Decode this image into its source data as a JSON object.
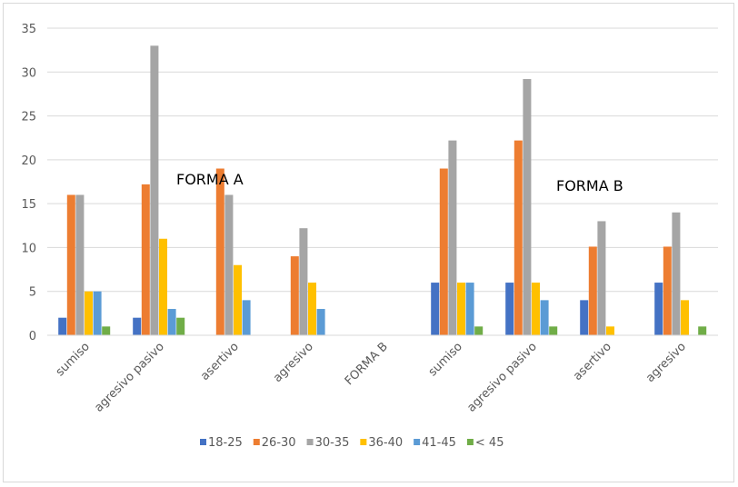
{
  "chart_data": {
    "type": "bar",
    "categories": [
      "sumiso",
      "agresivo pasivo",
      "asertivo",
      "agresivo",
      "FORMA B",
      "sumiso",
      "agresivo pasivo",
      "asertivo",
      "agresivo"
    ],
    "series": [
      {
        "name": "18-25",
        "color": "#4472c4",
        "values": [
          2,
          2,
          0,
          0,
          0,
          6,
          6,
          4,
          6
        ]
      },
      {
        "name": "26-30",
        "color": "#ed7d31",
        "values": [
          16,
          17.2,
          19,
          9,
          0,
          19,
          22.2,
          10.1,
          10.1
        ]
      },
      {
        "name": "30-35",
        "color": "#a5a5a5",
        "values": [
          16,
          33,
          16,
          12.2,
          0,
          22.2,
          29.2,
          13,
          14
        ]
      },
      {
        "name": "36-40",
        "color": "#ffc000",
        "values": [
          5,
          11,
          8,
          6,
          0,
          6,
          6,
          1,
          4
        ]
      },
      {
        "name": "41-45",
        "color": "#5b9bd5",
        "values": [
          5,
          3,
          4,
          3,
          0,
          6,
          4,
          0,
          0
        ]
      },
      {
        "name": "< 45",
        "color": "#70ad47",
        "values": [
          1,
          2,
          0,
          0,
          0,
          1,
          1,
          0,
          1
        ]
      }
    ],
    "ylim": [
      0,
      35
    ],
    "yticks": [
      0,
      5,
      10,
      15,
      20,
      25,
      30,
      35
    ],
    "grid": true,
    "legend_position": "bottom",
    "annotations": [
      "FORMA A",
      "FORMA B"
    ]
  }
}
